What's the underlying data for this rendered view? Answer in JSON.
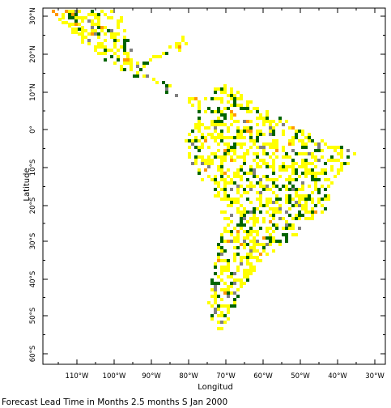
{
  "map": {
    "x_axis_label": "Longitud",
    "y_axis_label": "Latitude",
    "caption": "Forecast Lead Time in Months 2.5 months S Jan 2000",
    "lon_ticks": [
      "110°W",
      "100°W",
      "90°W",
      "80°W",
      "70°W",
      "60°W",
      "50°W",
      "40°W",
      "30°W"
    ],
    "lat_ticks": [
      "30°N",
      "20°N",
      "10°N",
      "0°",
      "10°S",
      "20°S",
      "30°S",
      "40°S",
      "50°S",
      "60°S"
    ],
    "colors": {
      "yellow": "#ffff00",
      "green": "#006400",
      "orange": "#ff9900",
      "gray": "#808080",
      "white": "#ffffff"
    }
  }
}
